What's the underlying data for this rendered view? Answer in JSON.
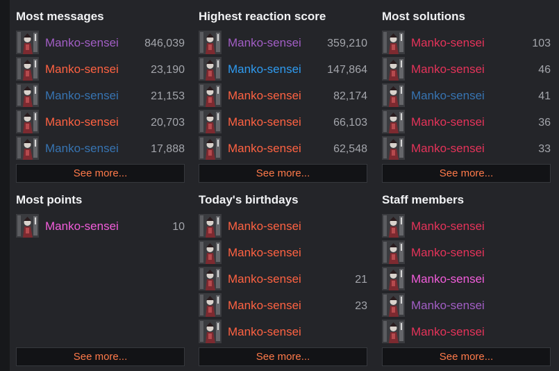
{
  "colors": {
    "page_bg": "#17181b",
    "panel_bg": "#242529",
    "title": "#f1f2f4",
    "value": "#a4a6ac",
    "see_more_text": "#ff7a4a",
    "see_more_bg": "#121316",
    "name_purple": "#a25ec5",
    "name_orange": "#ff6242",
    "name_blue": "#3774b2",
    "name_brightblue": "#2f9bf0",
    "name_crimson": "#e5335a",
    "name_pink": "#f25ddb"
  },
  "widgets": [
    {
      "title": "Most messages",
      "see_more": "See more...",
      "rows": [
        {
          "name": "Manko-sensei",
          "value": "846,039",
          "color": "#a25ec5",
          "avatar": "user-avatar"
        },
        {
          "name": "Manko-sensei",
          "value": "23,190",
          "color": "#ff6242",
          "avatar": "user-avatar"
        },
        {
          "name": "Manko-sensei",
          "value": "21,153",
          "color": "#3774b2",
          "avatar": "user-avatar"
        },
        {
          "name": "Manko-sensei",
          "value": "20,703",
          "color": "#ff6242",
          "avatar": "user-avatar"
        },
        {
          "name": "Manko-sensei",
          "value": "17,888",
          "color": "#3774b2",
          "avatar": "user-avatar"
        }
      ]
    },
    {
      "title": "Highest reaction score",
      "see_more": "See more...",
      "rows": [
        {
          "name": "Manko-sensei",
          "value": "359,210",
          "color": "#a25ec5",
          "avatar": "user-avatar"
        },
        {
          "name": "Manko-sensei",
          "value": "147,864",
          "color": "#2f9bf0",
          "avatar": "user-avatar"
        },
        {
          "name": "Manko-sensei",
          "value": "82,174",
          "color": "#ff6242",
          "avatar": "user-avatar"
        },
        {
          "name": "Manko-sensei",
          "value": "66,103",
          "color": "#ff6242",
          "avatar": "user-avatar"
        },
        {
          "name": "Manko-sensei",
          "value": "62,548",
          "color": "#ff6242",
          "avatar": "user-avatar"
        }
      ]
    },
    {
      "title": "Most solutions",
      "see_more": "See more...",
      "rows": [
        {
          "name": "Manko-sensei",
          "value": "103",
          "color": "#e5335a",
          "avatar": "user-avatar"
        },
        {
          "name": "Manko-sensei",
          "value": "46",
          "color": "#e5335a",
          "avatar": "user-avatar"
        },
        {
          "name": "Manko-sensei",
          "value": "41",
          "color": "#3774b2",
          "avatar": "user-avatar"
        },
        {
          "name": "Manko-sensei",
          "value": "36",
          "color": "#e5335a",
          "avatar": "user-avatar"
        },
        {
          "name": "Manko-sensei",
          "value": "33",
          "color": "#e5335a",
          "avatar": "user-avatar"
        }
      ]
    },
    {
      "title": "Most points",
      "see_more": "See more...",
      "rows": [
        {
          "name": "Manko-sensei",
          "value": "10",
          "color": "#f25ddb",
          "avatar": "user-avatar"
        }
      ]
    },
    {
      "title": "Today's birthdays",
      "see_more": "See more...",
      "rows": [
        {
          "name": "Manko-sensei",
          "value": "",
          "color": "#ff6242",
          "avatar": "user-avatar"
        },
        {
          "name": "Manko-sensei",
          "value": "",
          "color": "#ff6242",
          "avatar": "user-avatar"
        },
        {
          "name": "Manko-sensei",
          "value": "21",
          "color": "#ff6242",
          "avatar": "user-avatar"
        },
        {
          "name": "Manko-sensei",
          "value": "23",
          "color": "#ff6242",
          "avatar": "user-avatar"
        },
        {
          "name": "Manko-sensei",
          "value": "",
          "color": "#ff6242",
          "avatar": "user-avatar"
        }
      ]
    },
    {
      "title": "Staff members",
      "see_more": "See more...",
      "rows": [
        {
          "name": "Manko-sensei",
          "value": "",
          "color": "#e5335a",
          "avatar": "user-avatar"
        },
        {
          "name": "Manko-sensei",
          "value": "",
          "color": "#e5335a",
          "avatar": "user-avatar"
        },
        {
          "name": "Manko-sensei",
          "value": "",
          "color": "#f25ddb",
          "avatar": "user-avatar"
        },
        {
          "name": "Manko-sensei",
          "value": "",
          "color": "#a25ec5",
          "avatar": "user-avatar"
        },
        {
          "name": "Manko-sensei",
          "value": "",
          "color": "#e5335a",
          "avatar": "user-avatar"
        }
      ]
    }
  ]
}
